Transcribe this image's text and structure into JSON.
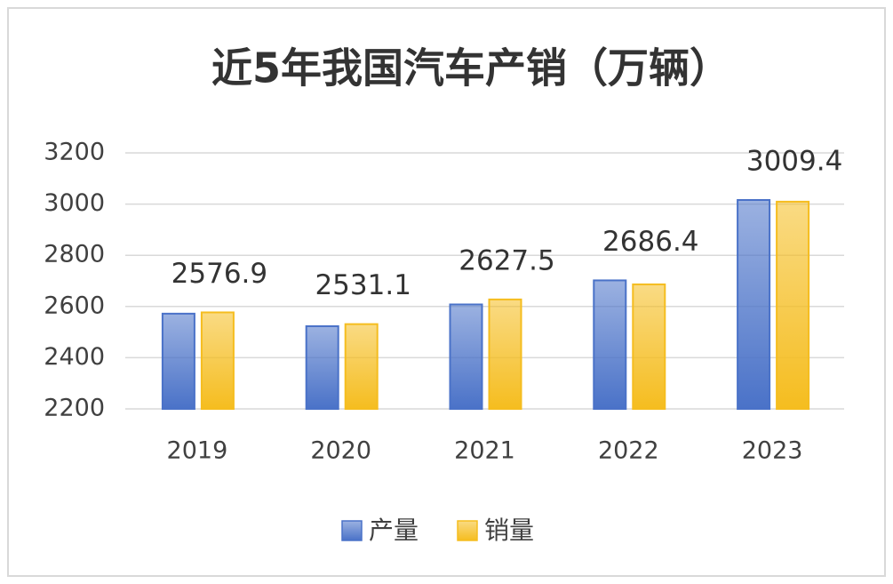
{
  "chart_data": {
    "type": "bar",
    "title": "近5年我国汽车产销（万辆）",
    "categories": [
      "2019",
      "2020",
      "2021",
      "2022",
      "2023"
    ],
    "series": [
      {
        "name": "产量",
        "color": "#4a72c8",
        "values": [
          2572,
          2523,
          2608,
          2702,
          3016
        ]
      },
      {
        "name": "销量",
        "color": "#f5bd1f",
        "values": [
          2576.9,
          2531.1,
          2627.5,
          2686.4,
          3009.4
        ]
      }
    ],
    "ylim": [
      2200,
      3200
    ],
    "yticks": [
      2200,
      2400,
      2600,
      2800,
      3000,
      3200
    ],
    "grid": true,
    "legend": "bottom"
  }
}
